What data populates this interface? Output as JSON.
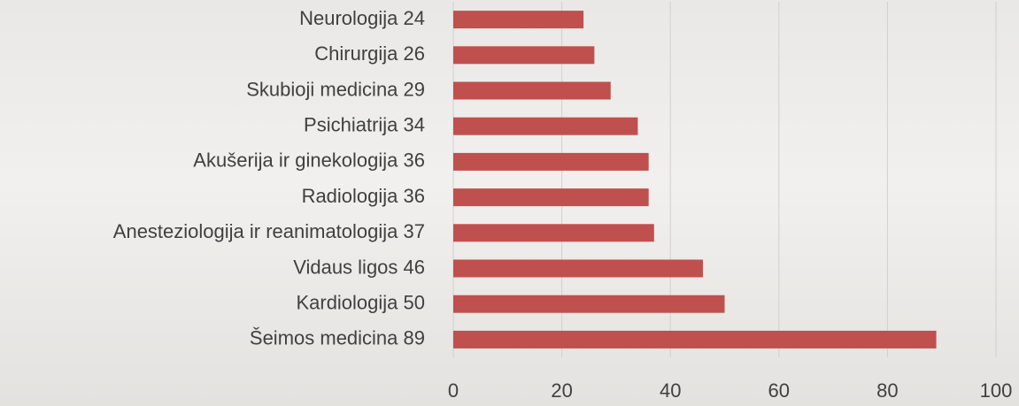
{
  "chart_data": {
    "type": "bar",
    "orientation": "horizontal",
    "categories": [
      "Neurologija 24",
      "Chirurgija 26",
      "Skubioji medicina 29",
      "Psichiatrija 34",
      "Akušerija ir ginekologija 36",
      "Radiologija 36",
      "Anesteziologija ir reanimatologija 37",
      "Vidaus ligos 46",
      "Kardiologija 50",
      "Šeimos medicina 89"
    ],
    "values": [
      24,
      26,
      29,
      34,
      36,
      36,
      37,
      46,
      50,
      89
    ],
    "color": "#c0504d",
    "xlim": [
      0,
      100
    ],
    "xticks": [
      0,
      20,
      40,
      60,
      80,
      100
    ],
    "grid": true
  }
}
